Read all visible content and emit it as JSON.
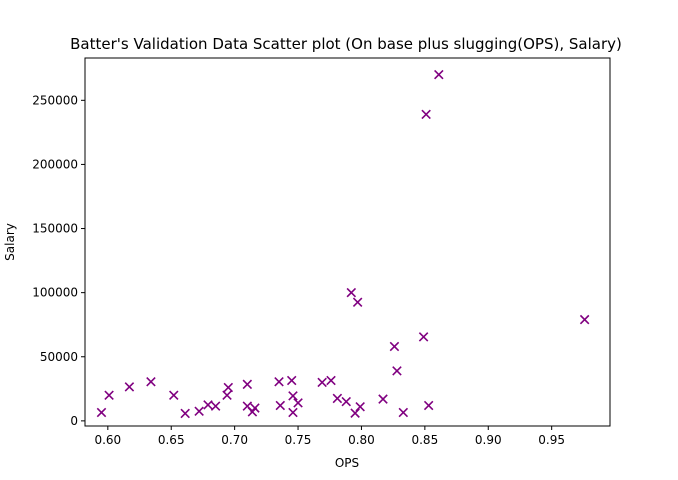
{
  "chart_data": {
    "type": "scatter",
    "title": "Batter's Validation Data Scatter plot (On base plus slugging(OPS), Salary)",
    "xlabel": "OPS",
    "ylabel": "Salary",
    "xlim": [
      0.582,
      0.996
    ],
    "ylim": [
      -4000,
      283000
    ],
    "xticks": [
      0.6,
      0.65,
      0.7,
      0.75,
      0.8,
      0.85,
      0.9,
      0.95
    ],
    "xtick_labels": [
      "0.60",
      "0.65",
      "0.70",
      "0.75",
      "0.80",
      "0.85",
      "0.90",
      "0.95"
    ],
    "yticks": [
      0,
      50000,
      100000,
      150000,
      200000,
      250000
    ],
    "ytick_labels": [
      "0",
      "50000",
      "100000",
      "150000",
      "200000",
      "250000"
    ],
    "grid": false,
    "marker": "x",
    "color": "#800080",
    "series": [
      {
        "points": [
          [
            0.595,
            6500
          ],
          [
            0.601,
            20000
          ],
          [
            0.617,
            26500
          ],
          [
            0.634,
            30500
          ],
          [
            0.652,
            20000
          ],
          [
            0.661,
            5800
          ],
          [
            0.672,
            7500
          ],
          [
            0.679,
            12500
          ],
          [
            0.685,
            11500
          ],
          [
            0.694,
            20000
          ],
          [
            0.695,
            26000
          ],
          [
            0.71,
            28500
          ],
          [
            0.71,
            11500
          ],
          [
            0.714,
            7000
          ],
          [
            0.716,
            10000
          ],
          [
            0.735,
            30500
          ],
          [
            0.736,
            12000
          ],
          [
            0.745,
            31500
          ],
          [
            0.746,
            19500
          ],
          [
            0.746,
            6500
          ],
          [
            0.75,
            14000
          ],
          [
            0.769,
            30000
          ],
          [
            0.776,
            31500
          ],
          [
            0.781,
            17500
          ],
          [
            0.788,
            15000
          ],
          [
            0.792,
            100000
          ],
          [
            0.795,
            6000
          ],
          [
            0.797,
            92500
          ],
          [
            0.799,
            11000
          ],
          [
            0.817,
            17000
          ],
          [
            0.826,
            58000
          ],
          [
            0.828,
            39000
          ],
          [
            0.833,
            6500
          ],
          [
            0.849,
            65500
          ],
          [
            0.851,
            239000
          ],
          [
            0.853,
            12000
          ],
          [
            0.861,
            270000
          ],
          [
            0.976,
            79000
          ]
        ]
      }
    ]
  }
}
